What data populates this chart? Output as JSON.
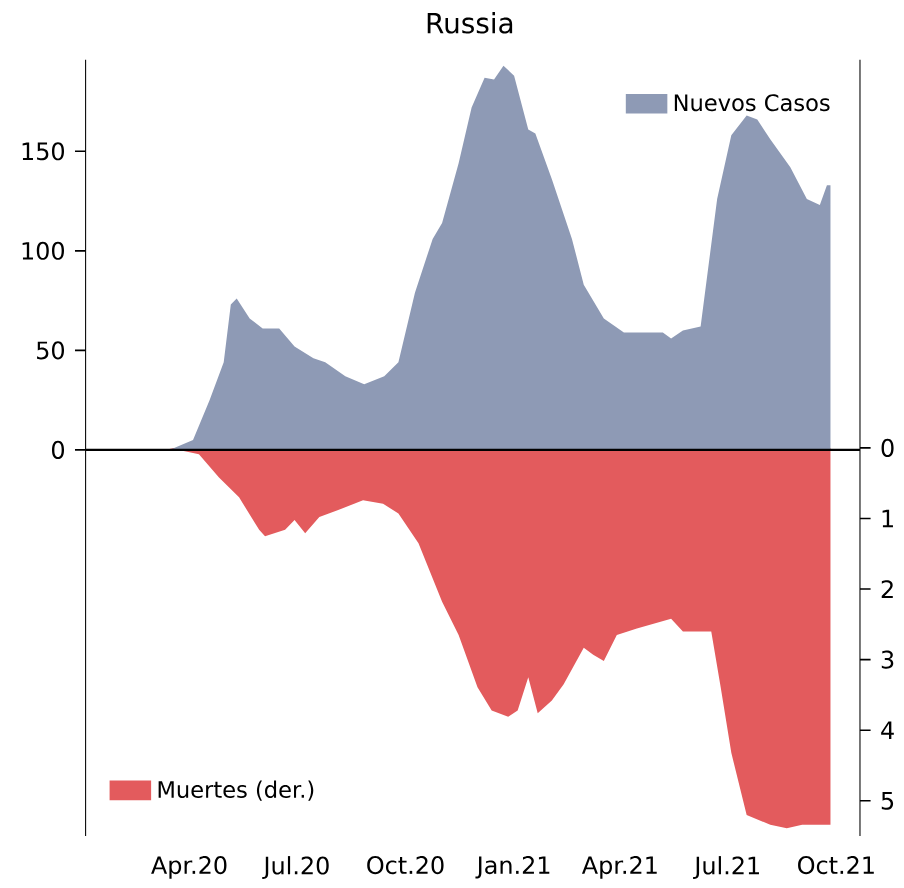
{
  "chart_data": {
    "type": "area",
    "title": "Russia",
    "legend": "top right",
    "xlim": [
      "2020-01-04",
      "2021-10-21"
    ],
    "xticks": [
      {
        "value": "2020-04-01",
        "label": "Apr.20"
      },
      {
        "value": "2020-07-01",
        "label": "Jul.20"
      },
      {
        "value": "2020-10-01",
        "label": "Oct.20"
      },
      {
        "value": "2021-01-01",
        "label": "Jan.21"
      },
      {
        "value": "2021-04-01",
        "label": "Apr.21"
      },
      {
        "value": "2021-07-01",
        "label": "Jul.21"
      },
      {
        "value": "2021-10-01",
        "label": "Oct.21"
      }
    ],
    "ylim": [
      -194,
      196
    ],
    "yticks": [
      0,
      50,
      100,
      150
    ],
    "y2lim": [
      5.5,
      -5.5
    ],
    "y2ticks": [
      0,
      1,
      2,
      3,
      4,
      5
    ],
    "series": [
      {
        "name": "Nuevos Casos",
        "color": "#8e9ab5",
        "x": [
          "2020-02-02",
          "2020-03-15",
          "2020-04-04",
          "2020-04-18",
          "2020-04-30",
          "2020-05-06",
          "2020-05-11",
          "2020-05-22",
          "2020-06-02",
          "2020-06-16",
          "2020-06-29",
          "2020-07-15",
          "2020-07-25",
          "2020-08-11",
          "2020-08-27",
          "2020-09-13",
          "2020-09-25",
          "2020-10-09",
          "2020-10-24",
          "2020-11-01",
          "2020-11-15",
          "2020-11-26",
          "2020-12-07",
          "2020-12-15",
          "2020-12-23",
          "2021-01-01",
          "2021-01-13",
          "2021-01-19",
          "2021-02-02",
          "2021-02-19",
          "2021-03-01",
          "2021-03-18",
          "2021-04-04",
          "2021-04-20",
          "2021-05-07",
          "2021-05-14",
          "2021-05-24",
          "2021-06-08",
          "2021-06-22",
          "2021-07-04",
          "2021-07-17",
          "2021-07-26",
          "2021-08-06",
          "2021-08-23",
          "2021-09-06",
          "2021-09-17",
          "2021-09-23",
          "2021-09-26"
        ],
        "values": [
          0,
          0,
          5,
          25,
          44,
          73,
          76,
          66,
          61,
          61,
          52,
          46,
          44,
          37,
          33,
          37,
          44,
          79,
          106,
          114,
          144,
          172,
          187,
          186,
          193,
          188,
          161,
          159,
          136,
          106,
          83,
          66,
          59,
          59,
          59,
          56,
          60,
          62,
          126,
          158,
          168,
          166,
          156,
          142,
          126,
          123,
          133,
          133
        ]
      },
      {
        "name": "Muertes (der.)",
        "color": "#e35b5d",
        "axis": "y2",
        "x": [
          "2020-03-15",
          "2020-04-09",
          "2020-04-26",
          "2020-05-13",
          "2020-05-30",
          "2020-06-04",
          "2020-06-21",
          "2020-06-29",
          "2020-07-08",
          "2020-07-20",
          "2020-08-05",
          "2020-08-26",
          "2020-09-12",
          "2020-09-25",
          "2020-10-12",
          "2020-11-01",
          "2020-11-15",
          "2020-12-01",
          "2020-12-13",
          "2020-12-27",
          "2021-01-04",
          "2021-01-13",
          "2021-01-21",
          "2021-02-02",
          "2021-02-12",
          "2021-03-01",
          "2021-03-09",
          "2021-03-18",
          "2021-03-29",
          "2021-04-15",
          "2021-05-14",
          "2021-05-24",
          "2021-06-17",
          "2021-06-25",
          "2021-07-04",
          "2021-07-17",
          "2021-08-06",
          "2021-08-20",
          "2021-09-02",
          "2021-09-19",
          "2021-09-26"
        ],
        "values": [
          0,
          0.09,
          0.42,
          0.7,
          1.16,
          1.25,
          1.16,
          1.02,
          1.21,
          0.98,
          0.88,
          0.74,
          0.79,
          0.93,
          1.35,
          2.18,
          2.65,
          3.39,
          3.72,
          3.81,
          3.72,
          3.25,
          3.76,
          3.58,
          3.35,
          2.83,
          2.93,
          3.02,
          2.65,
          2.56,
          2.42,
          2.6,
          2.6,
          3.39,
          4.32,
          5.2,
          5.34,
          5.39,
          5.34,
          5.34,
          5.34
        ]
      }
    ]
  }
}
